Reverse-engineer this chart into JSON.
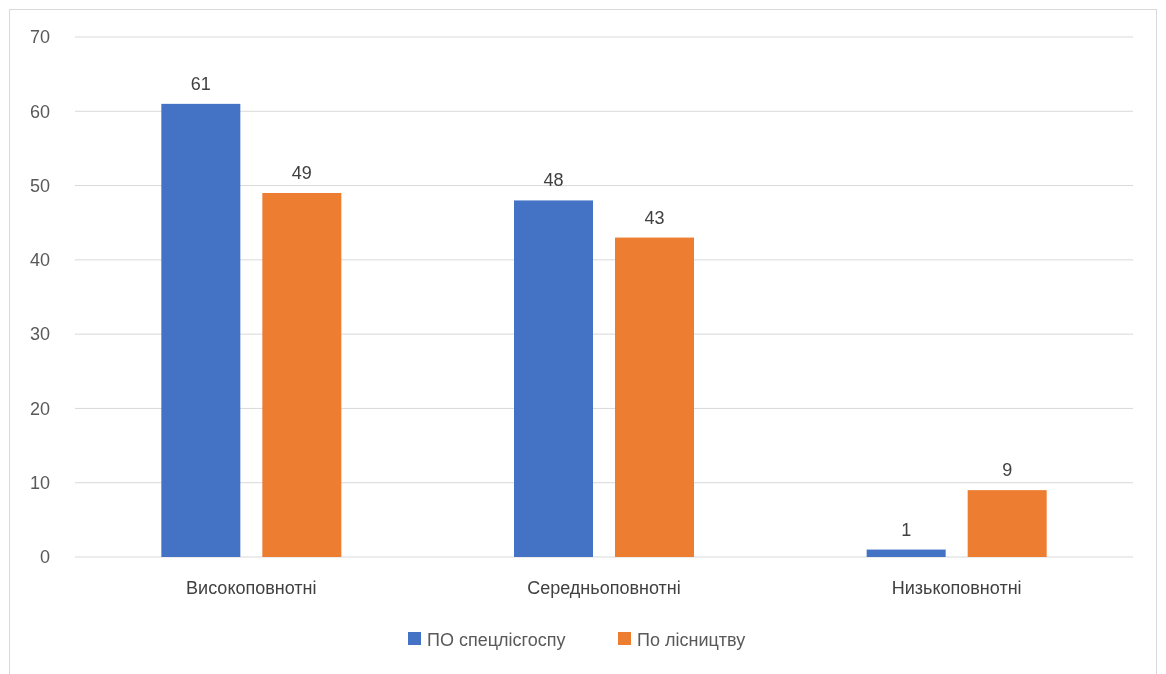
{
  "chart_data": {
    "type": "bar",
    "categories": [
      "Високоповнотні",
      "Середньоповнотні",
      "Низькоповнотні"
    ],
    "series": [
      {
        "name": "ПО спецлісгоспу",
        "color": "#4472c4",
        "values": [
          61,
          48,
          1
        ]
      },
      {
        "name": "По лісництву",
        "color": "#ed7d31",
        "values": [
          49,
          43,
          9
        ]
      }
    ],
    "ylim": [
      0,
      70
    ],
    "yticks": [
      0,
      10,
      20,
      30,
      40,
      50,
      60,
      70
    ],
    "grid": "y",
    "data_labels": true,
    "legend": "bottom"
  }
}
